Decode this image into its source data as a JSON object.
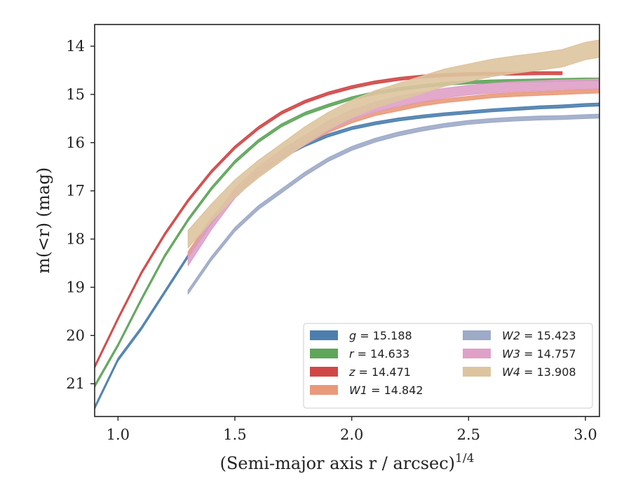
{
  "chart_data": {
    "type": "line",
    "xlabel": "(Semi-major axis r / arcsec)",
    "xlabel_superscript": "1/4",
    "ylabel": "m(<r) (mag)",
    "xlim": [
      0.9,
      3.06
    ],
    "ylim": [
      21.68,
      13.55
    ],
    "y_inverted": true,
    "grid": false,
    "legend_placement": "lower-right",
    "legend_columns": 2,
    "x_ticks": [
      1.0,
      1.5,
      2.0,
      2.5,
      3.0
    ],
    "x_tick_labels": [
      "1.0",
      "1.5",
      "2.0",
      "2.5",
      "3.0"
    ],
    "y_ticks": [
      14,
      15,
      16,
      17,
      18,
      19,
      20,
      21
    ],
    "y_tick_labels": [
      "14",
      "15",
      "16",
      "17",
      "18",
      "19",
      "20",
      "21"
    ],
    "series": [
      {
        "name": "g",
        "label_value": "15.188",
        "color": "#4c7fae",
        "band_width": 0.03,
        "x": [
          0.9,
          1.0,
          1.1,
          1.2,
          1.3,
          1.4,
          1.5,
          1.6,
          1.7,
          1.8,
          1.9,
          2.0,
          2.1,
          2.2,
          2.3,
          2.4,
          2.5,
          2.6,
          2.7,
          2.8,
          2.9,
          3.0,
          3.06
        ],
        "y": [
          21.5,
          20.5,
          19.85,
          19.1,
          18.35,
          17.65,
          17.05,
          16.6,
          16.3,
          16.05,
          15.85,
          15.7,
          15.6,
          15.52,
          15.46,
          15.41,
          15.37,
          15.33,
          15.3,
          15.27,
          15.25,
          15.22,
          15.21
        ]
      },
      {
        "name": "r",
        "label_value": "14.633",
        "color": "#5fa55a",
        "band_width": 0.03,
        "x": [
          0.9,
          1.0,
          1.1,
          1.2,
          1.3,
          1.4,
          1.5,
          1.6,
          1.7,
          1.8,
          1.9,
          2.0,
          2.1,
          2.2,
          2.3,
          2.4,
          2.5,
          2.6,
          2.7,
          2.8,
          2.9,
          3.0,
          3.06
        ],
        "y": [
          21.05,
          20.2,
          19.25,
          18.35,
          17.6,
          16.95,
          16.4,
          15.97,
          15.64,
          15.4,
          15.23,
          15.08,
          14.97,
          14.89,
          14.83,
          14.78,
          14.75,
          14.73,
          14.72,
          14.71,
          14.7,
          14.69,
          14.69
        ]
      },
      {
        "name": "z",
        "label_value": "14.471",
        "color": "#d14747",
        "band_width": 0.03,
        "x": [
          0.9,
          1.0,
          1.1,
          1.2,
          1.3,
          1.4,
          1.5,
          1.6,
          1.7,
          1.8,
          1.9,
          2.0,
          2.1,
          2.2,
          2.3,
          2.4,
          2.5,
          2.6,
          2.7,
          2.8,
          2.9
        ],
        "y": [
          20.65,
          19.65,
          18.7,
          17.9,
          17.2,
          16.6,
          16.1,
          15.7,
          15.38,
          15.15,
          14.98,
          14.85,
          14.75,
          14.68,
          14.63,
          14.6,
          14.58,
          14.57,
          14.57,
          14.56,
          14.56
        ]
      },
      {
        "name": "W1",
        "label_value": "14.842",
        "color": "#e99a7a",
        "band_width": 0.04,
        "x": [
          1.3,
          1.4,
          1.5,
          1.6,
          1.7,
          1.8,
          1.9,
          2.0,
          2.1,
          2.2,
          2.3,
          2.4,
          2.5,
          2.6,
          2.7,
          2.8,
          2.9,
          3.0,
          3.06
        ],
        "y": [
          18.3,
          17.6,
          17.05,
          16.65,
          16.3,
          16.0,
          15.75,
          15.55,
          15.4,
          15.3,
          15.2,
          15.13,
          15.08,
          15.03,
          15.0,
          14.98,
          14.96,
          14.94,
          14.93
        ]
      },
      {
        "name": "W2",
        "label_value": "15.423",
        "color": "#9daac8",
        "band_width": 0.04,
        "x": [
          1.3,
          1.4,
          1.5,
          1.6,
          1.7,
          1.8,
          1.9,
          2.0,
          2.1,
          2.2,
          2.3,
          2.4,
          2.5,
          2.6,
          2.7,
          2.8,
          2.9,
          3.0,
          3.06
        ],
        "y": [
          19.1,
          18.4,
          17.8,
          17.35,
          17.0,
          16.65,
          16.35,
          16.12,
          15.95,
          15.82,
          15.72,
          15.64,
          15.58,
          15.54,
          15.51,
          15.49,
          15.48,
          15.46,
          15.45
        ]
      },
      {
        "name": "W3",
        "label_value": "14.757",
        "color": "#dfa0c8",
        "band_width": 0.1,
        "x": [
          1.3,
          1.4,
          1.5,
          1.6,
          1.7,
          1.8,
          1.9,
          2.0,
          2.1,
          2.2,
          2.3,
          2.4,
          2.5,
          2.6,
          2.7,
          2.8,
          2.9,
          3.0,
          3.06
        ],
        "y": [
          18.45,
          17.7,
          17.05,
          16.6,
          16.25,
          15.95,
          15.65,
          15.42,
          15.26,
          15.14,
          15.05,
          14.97,
          14.91,
          14.87,
          14.84,
          14.82,
          14.8,
          14.79,
          14.78
        ]
      },
      {
        "name": "W4",
        "label_value": "13.908",
        "color": "#ddc49f",
        "band_width": 0.18,
        "x": [
          1.3,
          1.4,
          1.5,
          1.6,
          1.7,
          1.8,
          1.9,
          2.0,
          2.1,
          2.2,
          2.3,
          2.4,
          2.5,
          2.6,
          2.7,
          2.8,
          2.9,
          3.0,
          3.06
        ],
        "y": [
          18.0,
          17.45,
          16.95,
          16.55,
          16.2,
          15.85,
          15.55,
          15.3,
          15.1,
          14.95,
          14.8,
          14.65,
          14.55,
          14.45,
          14.38,
          14.32,
          14.25,
          14.1,
          14.05
        ]
      }
    ]
  }
}
